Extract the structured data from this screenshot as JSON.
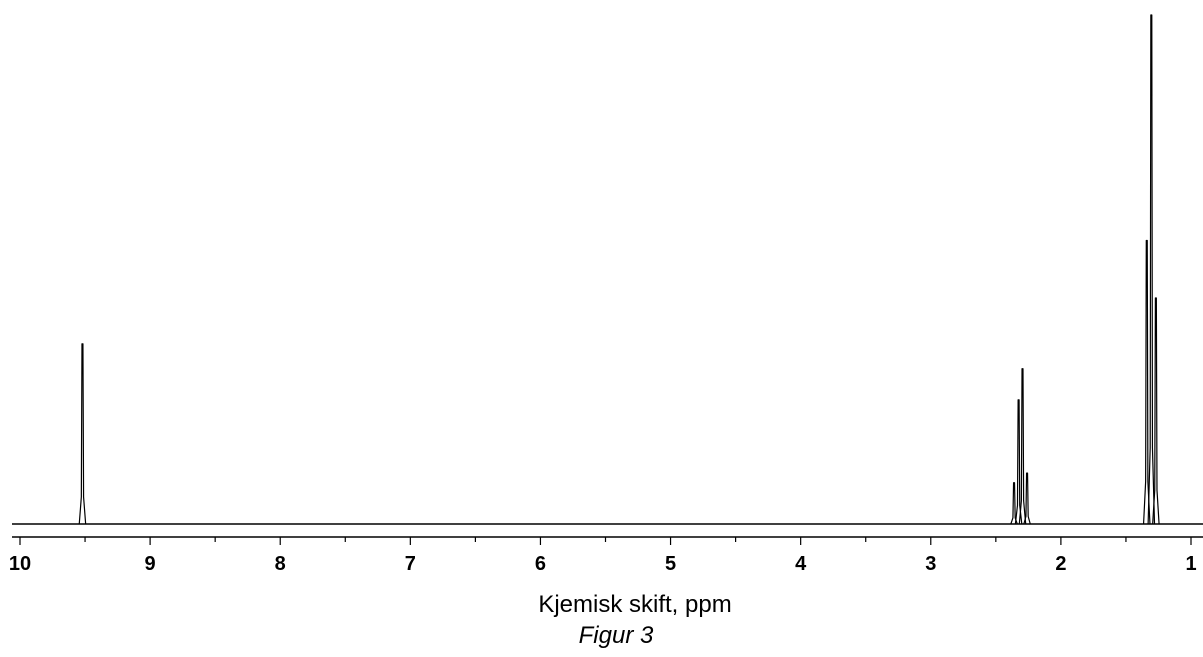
{
  "chart_data": {
    "type": "line",
    "xlabel": "Kjemisk skift, ppm",
    "caption": "Figur 3",
    "xlim": [
      10,
      1
    ],
    "x_reversed": true,
    "ylim": [
      0,
      1
    ],
    "grid": false,
    "ticks": [
      {
        "value": 10,
        "label": "10"
      },
      {
        "value": 9,
        "label": "9"
      },
      {
        "value": 8,
        "label": "8"
      },
      {
        "value": 7,
        "label": "7"
      },
      {
        "value": 6,
        "label": "6"
      },
      {
        "value": 5,
        "label": "5"
      },
      {
        "value": 4,
        "label": "4"
      },
      {
        "value": 3,
        "label": "3"
      },
      {
        "value": 2,
        "label": "2"
      },
      {
        "value": 1,
        "label": "1"
      }
    ],
    "peaks": [
      {
        "ppm": 9.52,
        "height": 0.354
      },
      {
        "ppm": 2.36,
        "height": 0.081
      },
      {
        "ppm": 2.325,
        "height": 0.244
      },
      {
        "ppm": 2.295,
        "height": 0.305
      },
      {
        "ppm": 2.26,
        "height": 0.1
      },
      {
        "ppm": 1.34,
        "height": 0.557
      },
      {
        "ppm": 1.305,
        "height": 1.0
      },
      {
        "ppm": 1.27,
        "height": 0.444
      }
    ],
    "line_color": "#000000"
  }
}
